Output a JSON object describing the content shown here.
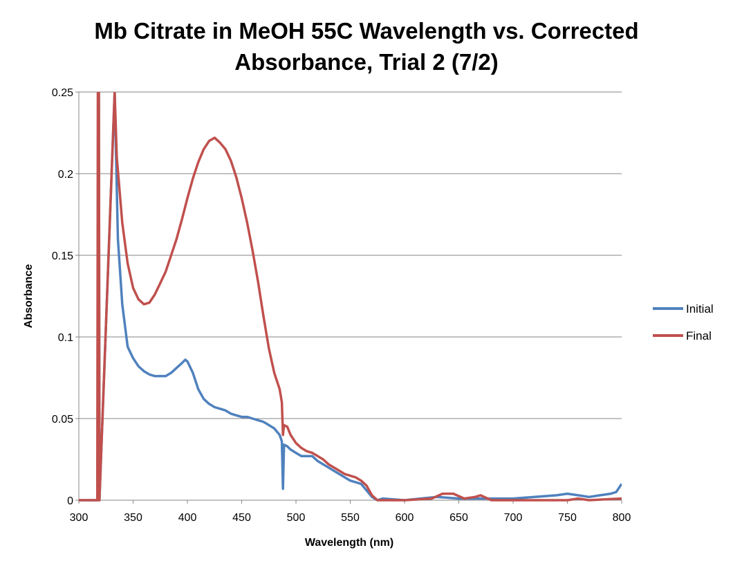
{
  "chart_data": {
    "type": "line",
    "title_line1": "Mb Citrate in MeOH 55C Wavelength vs. Corrected",
    "title_line2": "Absorbance, Trial 2 (7/2)",
    "xlabel": "Wavelength (nm)",
    "ylabel": "Absorbance",
    "xlim": [
      300,
      800
    ],
    "ylim": [
      0,
      0.25
    ],
    "x_ticks": [
      "300",
      "350",
      "400",
      "450",
      "500",
      "550",
      "600",
      "650",
      "700",
      "750",
      "800"
    ],
    "y_ticks": [
      "0",
      "0.05",
      "0.1",
      "0.15",
      "0.2",
      "0.25"
    ],
    "grid": "horizontal",
    "legend_position": "right",
    "series": [
      {
        "name": "Initial",
        "color": "#4f81bd",
        "points": [
          [
            300,
            0
          ],
          [
            318,
            0
          ],
          [
            318.5,
            0.25
          ],
          [
            319,
            0
          ],
          [
            333,
            0.25
          ],
          [
            336,
            0.16
          ],
          [
            340,
            0.12
          ],
          [
            345,
            0.094
          ],
          [
            350,
            0.087
          ],
          [
            355,
            0.082
          ],
          [
            360,
            0.079
          ],
          [
            365,
            0.077
          ],
          [
            370,
            0.076
          ],
          [
            375,
            0.076
          ],
          [
            380,
            0.076
          ],
          [
            385,
            0.078
          ],
          [
            390,
            0.081
          ],
          [
            395,
            0.084
          ],
          [
            398,
            0.086
          ],
          [
            400,
            0.085
          ],
          [
            405,
            0.078
          ],
          [
            410,
            0.068
          ],
          [
            415,
            0.062
          ],
          [
            420,
            0.059
          ],
          [
            425,
            0.057
          ],
          [
            430,
            0.056
          ],
          [
            435,
            0.055
          ],
          [
            440,
            0.053
          ],
          [
            445,
            0.052
          ],
          [
            450,
            0.051
          ],
          [
            455,
            0.051
          ],
          [
            460,
            0.05
          ],
          [
            465,
            0.049
          ],
          [
            470,
            0.048
          ],
          [
            475,
            0.046
          ],
          [
            480,
            0.044
          ],
          [
            485,
            0.04
          ],
          [
            487,
            0.036
          ],
          [
            488,
            0.007
          ],
          [
            489,
            0.034
          ],
          [
            492,
            0.033
          ],
          [
            495,
            0.031
          ],
          [
            500,
            0.029
          ],
          [
            505,
            0.027
          ],
          [
            510,
            0.027
          ],
          [
            515,
            0.027
          ],
          [
            520,
            0.024
          ],
          [
            525,
            0.022
          ],
          [
            530,
            0.02
          ],
          [
            535,
            0.018
          ],
          [
            540,
            0.016
          ],
          [
            545,
            0.014
          ],
          [
            550,
            0.012
          ],
          [
            555,
            0.011
          ],
          [
            560,
            0.01
          ],
          [
            565,
            0.006
          ],
          [
            570,
            0.002
          ],
          [
            575,
            0.0
          ],
          [
            580,
            0.001
          ],
          [
            600,
            0.0
          ],
          [
            630,
            0.002
          ],
          [
            650,
            0.001
          ],
          [
            670,
            0.001
          ],
          [
            700,
            0.001
          ],
          [
            720,
            0.002
          ],
          [
            740,
            0.003
          ],
          [
            750,
            0.004
          ],
          [
            760,
            0.003
          ],
          [
            770,
            0.002
          ],
          [
            780,
            0.003
          ],
          [
            790,
            0.004
          ],
          [
            795,
            0.005
          ],
          [
            800,
            0.01
          ]
        ]
      },
      {
        "name": "Final",
        "color": "#c0504d",
        "points": [
          [
            300,
            0
          ],
          [
            317,
            0
          ],
          [
            317.5,
            0.25
          ],
          [
            318,
            0
          ],
          [
            318.5,
            0.25
          ],
          [
            319,
            0
          ],
          [
            333,
            0.25
          ],
          [
            335,
            0.21
          ],
          [
            340,
            0.17
          ],
          [
            345,
            0.145
          ],
          [
            350,
            0.13
          ],
          [
            355,
            0.123
          ],
          [
            360,
            0.12
          ],
          [
            365,
            0.121
          ],
          [
            370,
            0.126
          ],
          [
            375,
            0.133
          ],
          [
            380,
            0.14
          ],
          [
            385,
            0.15
          ],
          [
            390,
            0.16
          ],
          [
            395,
            0.172
          ],
          [
            400,
            0.185
          ],
          [
            405,
            0.197
          ],
          [
            410,
            0.207
          ],
          [
            415,
            0.215
          ],
          [
            420,
            0.22
          ],
          [
            425,
            0.222
          ],
          [
            430,
            0.219
          ],
          [
            435,
            0.215
          ],
          [
            440,
            0.208
          ],
          [
            445,
            0.198
          ],
          [
            450,
            0.185
          ],
          [
            455,
            0.17
          ],
          [
            460,
            0.153
          ],
          [
            465,
            0.134
          ],
          [
            470,
            0.113
          ],
          [
            475,
            0.093
          ],
          [
            480,
            0.078
          ],
          [
            485,
            0.068
          ],
          [
            487,
            0.06
          ],
          [
            488,
            0.04
          ],
          [
            489,
            0.046
          ],
          [
            492,
            0.045
          ],
          [
            495,
            0.04
          ],
          [
            500,
            0.035
          ],
          [
            505,
            0.032
          ],
          [
            510,
            0.03
          ],
          [
            515,
            0.029
          ],
          [
            520,
            0.027
          ],
          [
            525,
            0.025
          ],
          [
            530,
            0.022
          ],
          [
            535,
            0.02
          ],
          [
            540,
            0.018
          ],
          [
            545,
            0.016
          ],
          [
            550,
            0.015
          ],
          [
            555,
            0.014
          ],
          [
            560,
            0.012
          ],
          [
            565,
            0.009
          ],
          [
            570,
            0.003
          ],
          [
            575,
            0.0
          ],
          [
            600,
            0.0
          ],
          [
            625,
            0.001
          ],
          [
            635,
            0.004
          ],
          [
            645,
            0.004
          ],
          [
            655,
            0.001
          ],
          [
            665,
            0.002
          ],
          [
            670,
            0.003
          ],
          [
            680,
            0.0
          ],
          [
            700,
            0.0
          ],
          [
            750,
            0.0
          ],
          [
            760,
            0.001
          ],
          [
            770,
            0.0
          ],
          [
            800,
            0.001
          ]
        ]
      }
    ]
  }
}
